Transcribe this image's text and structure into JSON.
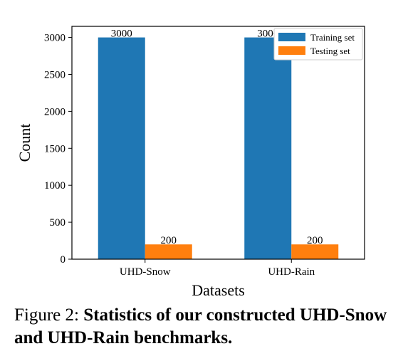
{
  "chart_data": {
    "type": "bar",
    "categories": [
      "UHD-Snow",
      "UHD-Rain"
    ],
    "series": [
      {
        "name": "Training set",
        "values": [
          3000,
          3000
        ],
        "color": "#1f77b4"
      },
      {
        "name": "Testing set",
        "values": [
          200,
          200
        ],
        "color": "#ff7f0e"
      }
    ],
    "xlabel": "Datasets",
    "ylabel": "Count",
    "ylim": [
      0,
      3150
    ],
    "yticks": [
      0,
      500,
      1000,
      1500,
      2000,
      2500,
      3000
    ],
    "grid": false,
    "legend": "top-right"
  },
  "caption": {
    "prefix": "Figure 2: ",
    "text": "Statistics of our constructed UHD-Snow and UHD-Rain benchmarks."
  }
}
